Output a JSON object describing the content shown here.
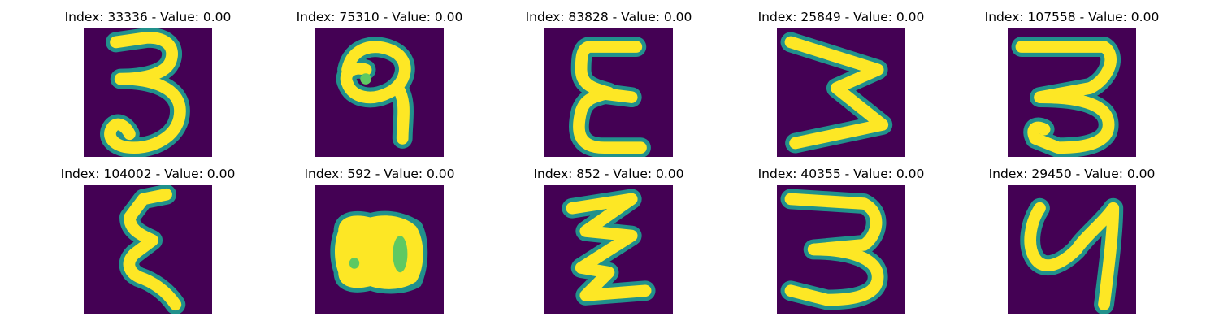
{
  "colors": {
    "background": "#440154",
    "edge": "#21918c",
    "mid": "#5ec962",
    "ink": "#fde725"
  },
  "grid": [
    [
      {
        "title": "Index: 33336 - Value: 0.00",
        "glyph": "3",
        "image": "handwritten-three"
      },
      {
        "title": "Index: 75310 - Value: 0.00",
        "glyph": "9",
        "image": "handwritten-nine"
      },
      {
        "title": "Index: 83828 - Value: 0.00",
        "glyph": "ε",
        "image": "handwritten-epsilon"
      },
      {
        "title": "Index: 25849 - Value: 0.00",
        "glyph": "W",
        "image": "handwritten-sideways-w"
      },
      {
        "title": "Index: 107558 - Value: 0.00",
        "glyph": "3",
        "image": "handwritten-three"
      }
    ],
    [
      {
        "title": "Index: 104002 - Value: 0.00",
        "glyph": "ε",
        "image": "handwritten-epsilon"
      },
      {
        "title": "Index: 592 - Value: 0.00",
        "glyph": "8",
        "image": "handwritten-blob-eight"
      },
      {
        "title": "Index: 852 - Value: 0.00",
        "glyph": "Z",
        "image": "handwritten-zigzag"
      },
      {
        "title": "Index: 40355 - Value: 0.00",
        "glyph": "3",
        "image": "handwritten-three"
      },
      {
        "title": "Index: 29450 - Value: 0.00",
        "glyph": "y",
        "image": "handwritten-y"
      }
    ]
  ]
}
